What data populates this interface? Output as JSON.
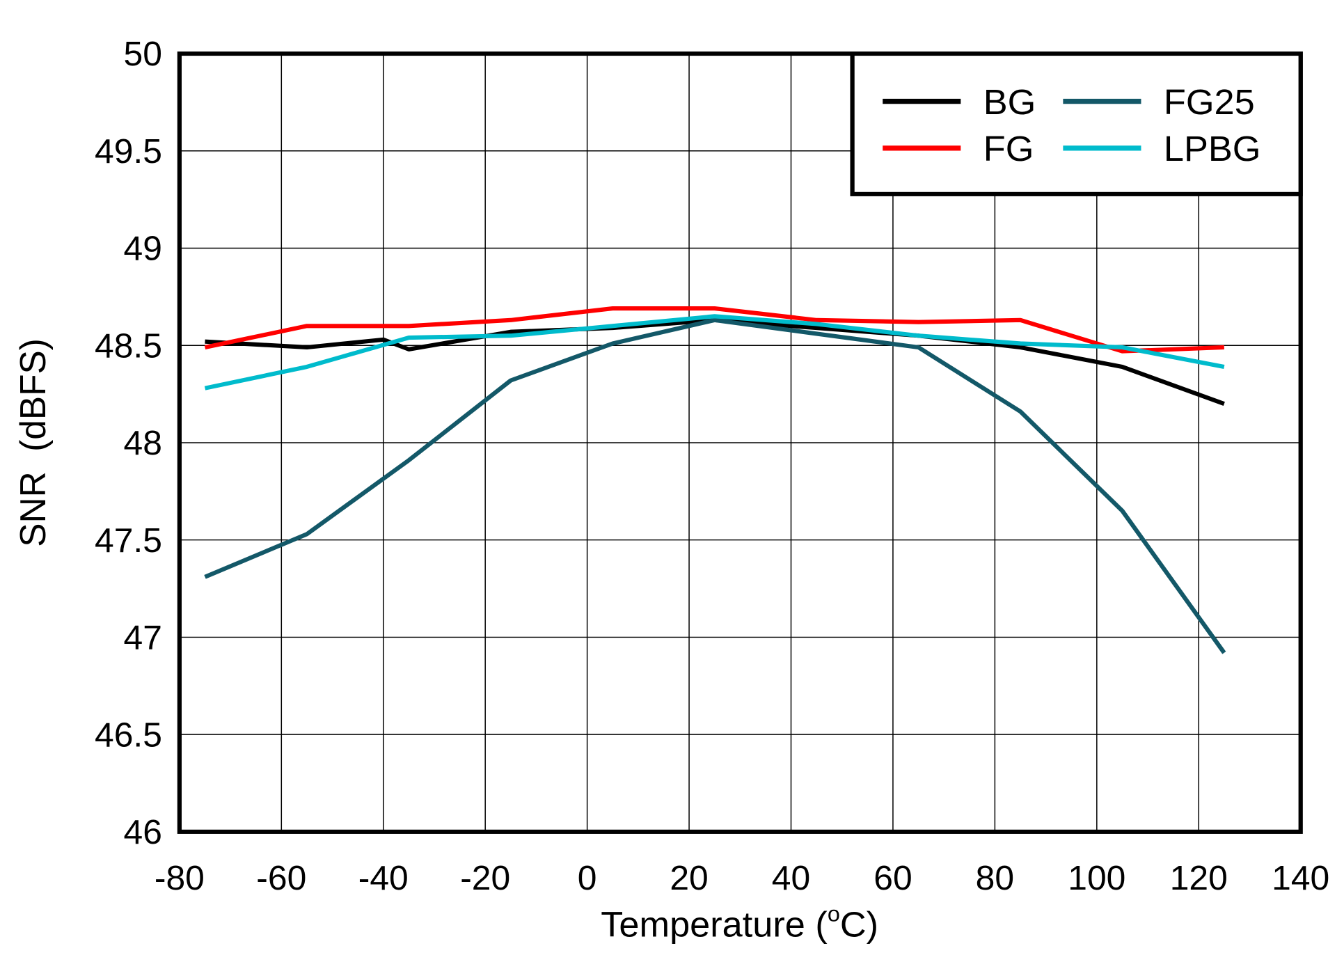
{
  "chart_data": {
    "type": "line",
    "title": "",
    "xlabel": "Temperature",
    "xlabel_unit_prefix": "(",
    "xlabel_unit_sup": "o",
    "xlabel_unit_suffix": "C)",
    "ylabel": "SNR  (dBFS)",
    "xlim": [
      -80,
      140
    ],
    "ylim": [
      46,
      50
    ],
    "xticks": [
      "-80",
      "-60",
      "-40",
      "-20",
      "0",
      "20",
      "40",
      "60",
      "80",
      "100",
      "120",
      "140"
    ],
    "yticks": [
      "46",
      "46.5",
      "47",
      "47.5",
      "48",
      "48.5",
      "49",
      "49.5",
      "50"
    ],
    "grid": true,
    "legend_placement": "top-right",
    "series": [
      {
        "name": "BG",
        "color": "#000000",
        "x": [
          -75,
          -55,
          -40,
          -35,
          -15,
          5,
          25,
          45,
          65,
          85,
          105,
          125
        ],
        "y": [
          48.52,
          48.49,
          48.53,
          48.48,
          48.57,
          48.59,
          48.63,
          48.59,
          48.55,
          48.49,
          48.39,
          48.2
        ]
      },
      {
        "name": "FG",
        "color": "#ff0000",
        "x": [
          -75,
          -55,
          -35,
          -15,
          5,
          25,
          45,
          65,
          85,
          105,
          125
        ],
        "y": [
          48.49,
          48.6,
          48.6,
          48.63,
          48.69,
          48.69,
          48.63,
          48.62,
          48.63,
          48.47,
          48.49
        ]
      },
      {
        "name": "FG25",
        "color": "#135868",
        "x": [
          -75,
          -55,
          -35,
          -15,
          5,
          25,
          45,
          65,
          85,
          105,
          125
        ],
        "y": [
          47.31,
          47.53,
          47.91,
          48.32,
          48.51,
          48.63,
          48.56,
          48.49,
          48.16,
          47.65,
          46.92
        ]
      },
      {
        "name": "LPBG",
        "color": "#00bbcc",
        "x": [
          -75,
          -55,
          -35,
          -15,
          5,
          25,
          45,
          65,
          85,
          105,
          125
        ],
        "y": [
          48.28,
          48.39,
          48.54,
          48.55,
          48.6,
          48.65,
          48.61,
          48.55,
          48.51,
          48.49,
          48.39
        ]
      }
    ]
  }
}
